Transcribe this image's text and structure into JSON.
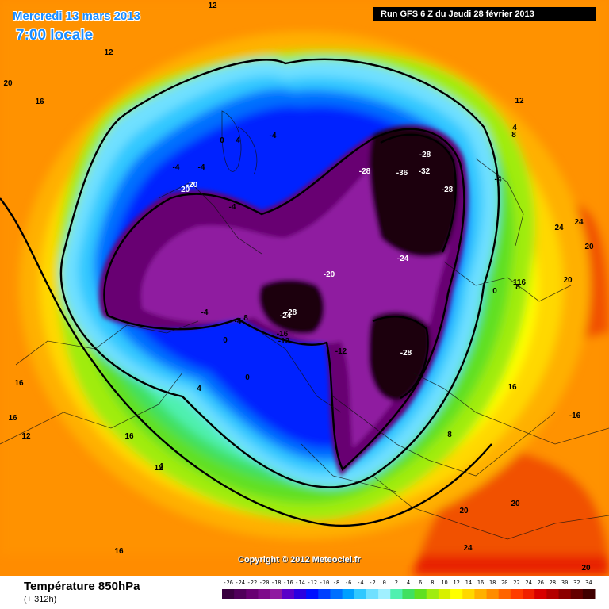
{
  "header": {
    "valid_date": "Mercredi 13 mars 2013",
    "local_time": "7:00 locale",
    "run_info": "Run GFS 6 Z du Jeudi 28 février 2013"
  },
  "map": {
    "copyright": "Copyright © 2012 Meteociel.fr",
    "isotherm_labels": [
      {
        "text": "-20"
      },
      {
        "text": "-20"
      },
      {
        "text": "-4"
      },
      {
        "text": "-4"
      },
      {
        "text": "-4"
      },
      {
        "text": "-4"
      },
      {
        "text": "0"
      },
      {
        "text": "4"
      },
      {
        "text": "-28"
      },
      {
        "text": "-28"
      },
      {
        "text": "-36"
      },
      {
        "text": "-32"
      },
      {
        "text": "-28"
      },
      {
        "text": "-24"
      },
      {
        "text": "-20"
      },
      {
        "text": "-28"
      },
      {
        "text": "-24"
      },
      {
        "text": "-16"
      },
      {
        "text": "-12"
      },
      {
        "text": "-12"
      },
      {
        "text": "-28"
      },
      {
        "text": "-4"
      },
      {
        "text": "-4"
      },
      {
        "text": "8"
      },
      {
        "text": "0"
      },
      {
        "text": "0"
      },
      {
        "text": "4"
      },
      {
        "text": "8"
      },
      {
        "text": "16"
      },
      {
        "text": "12"
      },
      {
        "text": "12"
      },
      {
        "text": "12"
      },
      {
        "text": "12"
      },
      {
        "text": "16"
      },
      {
        "text": "20"
      },
      {
        "text": "16"
      },
      {
        "text": "16"
      },
      {
        "text": "12"
      },
      {
        "text": "12"
      },
      {
        "text": "4"
      },
      {
        "text": "16"
      },
      {
        "text": "24"
      },
      {
        "text": "24"
      },
      {
        "text": "20"
      },
      {
        "text": "20"
      },
      {
        "text": "116"
      },
      {
        "text": "0"
      },
      {
        "text": "8"
      },
      {
        "text": "16"
      },
      {
        "text": "-16"
      },
      {
        "text": "8"
      },
      {
        "text": "20"
      },
      {
        "text": "20"
      },
      {
        "text": "24"
      },
      {
        "text": "20"
      },
      {
        "text": "-4"
      },
      {
        "text": "4"
      }
    ]
  },
  "footer": {
    "parameter": "Température 850hPa",
    "forecast_hour": "(+ 312h)"
  },
  "legend": {
    "values": [
      "-26",
      "-24",
      "-22",
      "-20",
      "-18",
      "-16",
      "-14",
      "-12",
      "-10",
      "-8",
      "-6",
      "-4",
      "-2",
      "0",
      "2",
      "4",
      "6",
      "8",
      "10",
      "12",
      "14",
      "16",
      "18",
      "20",
      "22",
      "24",
      "26",
      "28",
      "30",
      "32",
      "34"
    ],
    "colors": [
      "#3a0040",
      "#50005a",
      "#680072",
      "#7e0a8a",
      "#8f1aa0",
      "#5a00c8",
      "#2a00e0",
      "#0010ff",
      "#0040ff",
      "#0070ff",
      "#00a0ff",
      "#30c8ff",
      "#70e0ff",
      "#a0f0ff",
      "#50f0b0",
      "#40e060",
      "#60e020",
      "#a0ec10",
      "#d8f000",
      "#ffff00",
      "#ffd800",
      "#ffb000",
      "#ff8c00",
      "#ff6400",
      "#ff3c00",
      "#f02000",
      "#d80000",
      "#b40000",
      "#8c0000",
      "#640000",
      "#400000"
    ]
  }
}
